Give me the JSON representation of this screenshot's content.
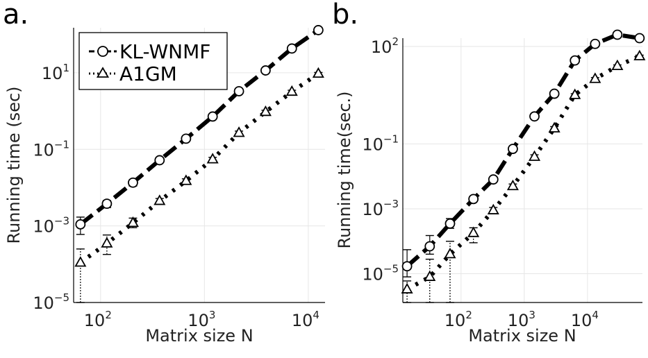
{
  "chart_data": [
    {
      "panel_label": "a.",
      "type": "line",
      "xlabel": "Matrix size N",
      "ylabel": "Running time (sec)",
      "xscale": "log",
      "yscale": "log",
      "xlim": [
        55,
        14500
      ],
      "ylim": [
        1e-05,
        150
      ],
      "xticks": [
        {
          "base": "10",
          "exp": "2",
          "value": 100
        },
        {
          "base": "10",
          "exp": "3",
          "value": 1000
        },
        {
          "base": "10",
          "exp": "4",
          "value": 10000
        }
      ],
      "yticks": [
        {
          "base": "10",
          "exp": "−5",
          "value": 1e-05
        },
        {
          "base": "10",
          "exp": "−3",
          "value": 0.001
        },
        {
          "base": "10",
          "exp": "−1",
          "value": 0.1
        },
        {
          "base": "10",
          "exp": "1",
          "value": 10
        }
      ],
      "grid": true,
      "legend_position": "top-left",
      "series": [
        {
          "name": "KL-WNMF",
          "marker": "circle",
          "style": "dashed",
          "x": [
            64,
            115,
            205,
            370,
            665,
            1200,
            2150,
            3880,
            6950,
            12500
          ],
          "y": [
            0.0011,
            0.0038,
            0.0135,
            0.052,
            0.19,
            0.72,
            3.3,
            11.5,
            43,
            130
          ],
          "err_low": [
            0.0006,
            0.003,
            0.011,
            0.045,
            0.17,
            0.65,
            3.0,
            10.5,
            39,
            120
          ],
          "err_high": [
            0.0017,
            0.0046,
            0.016,
            0.06,
            0.21,
            0.8,
            3.6,
            12.5,
            47,
            140
          ]
        },
        {
          "name": "A1GM",
          "marker": "triangle",
          "style": "dotted",
          "x": [
            64,
            115,
            205,
            370,
            665,
            1200,
            2150,
            3880,
            6950,
            12500
          ],
          "y": [
            0.00011,
            0.00035,
            0.0012,
            0.0045,
            0.015,
            0.055,
            0.27,
            0.95,
            3.2,
            9.5
          ],
          "err_low": [
            1e-05,
            0.00018,
            0.0009,
            0.0038,
            0.013,
            0.048,
            0.24,
            0.85,
            2.9,
            8.8
          ],
          "err_high": [
            0.00025,
            0.00058,
            0.0016,
            0.0052,
            0.017,
            0.062,
            0.3,
            1.05,
            3.5,
            10.2
          ]
        }
      ]
    },
    {
      "panel_label": "b.",
      "type": "line",
      "xlabel": "Matrix size N",
      "ylabel": "Running time(sec.)",
      "xscale": "log",
      "yscale": "log",
      "xlim": [
        12,
        74000
      ],
      "ylim": [
        1.3e-06,
        180
      ],
      "xticks": [
        {
          "base": "10",
          "exp": "2",
          "value": 100
        },
        {
          "base": "10",
          "exp": "3",
          "value": 1000
        },
        {
          "base": "10",
          "exp": "4",
          "value": 10000
        }
      ],
      "yticks": [
        {
          "base": "10",
          "exp": "−5",
          "value": 1e-05
        },
        {
          "base": "10",
          "exp": "−3",
          "value": 0.001
        },
        {
          "base": "10",
          "exp": "−1",
          "value": 0.1
        },
        {
          "base": "10",
          "exp": "2",
          "value": 100
        }
      ],
      "grid": true,
      "series": [
        {
          "name": "KL-WNMF",
          "marker": "circle",
          "style": "dashed",
          "x": [
            14,
            32,
            67,
            157,
            324,
            660,
            1450,
            2990,
            6320,
            13200,
            29700,
            66600
          ],
          "y": [
            1.7e-05,
            7e-05,
            0.00035,
            0.002,
            0.008,
            0.07,
            0.7,
            3.5,
            37,
            120,
            230,
            180
          ],
          "err_low": [
            8e-06,
            4e-05,
            0.00025,
            0.0017,
            0.007,
            0.06,
            0.62,
            3.2,
            33,
            110,
            215,
            170
          ],
          "err_high": [
            5.5e-05,
            0.00015,
            0.0005,
            0.0023,
            0.009,
            0.08,
            0.78,
            3.9,
            41,
            130,
            245,
            190
          ]
        },
        {
          "name": "A1GM",
          "marker": "triangle",
          "style": "dotted",
          "x": [
            14,
            32,
            67,
            157,
            324,
            660,
            1450,
            2990,
            6320,
            13200,
            29700,
            66600
          ],
          "y": [
            3.3e-06,
            8e-06,
            4e-05,
            0.00018,
            0.0009,
            0.005,
            0.04,
            0.3,
            3.2,
            10,
            25,
            50
          ],
          "err_low": [
            1.3e-06,
            1.3e-06,
            1.3e-06,
            9e-05,
            0.0008,
            0.0045,
            0.035,
            0.27,
            2.9,
            9,
            23,
            46
          ],
          "err_high": [
            6e-06,
            2.8e-05,
            0.0001,
            0.00026,
            0.0011,
            0.0058,
            0.046,
            0.34,
            3.5,
            11,
            27,
            54
          ]
        }
      ]
    }
  ]
}
